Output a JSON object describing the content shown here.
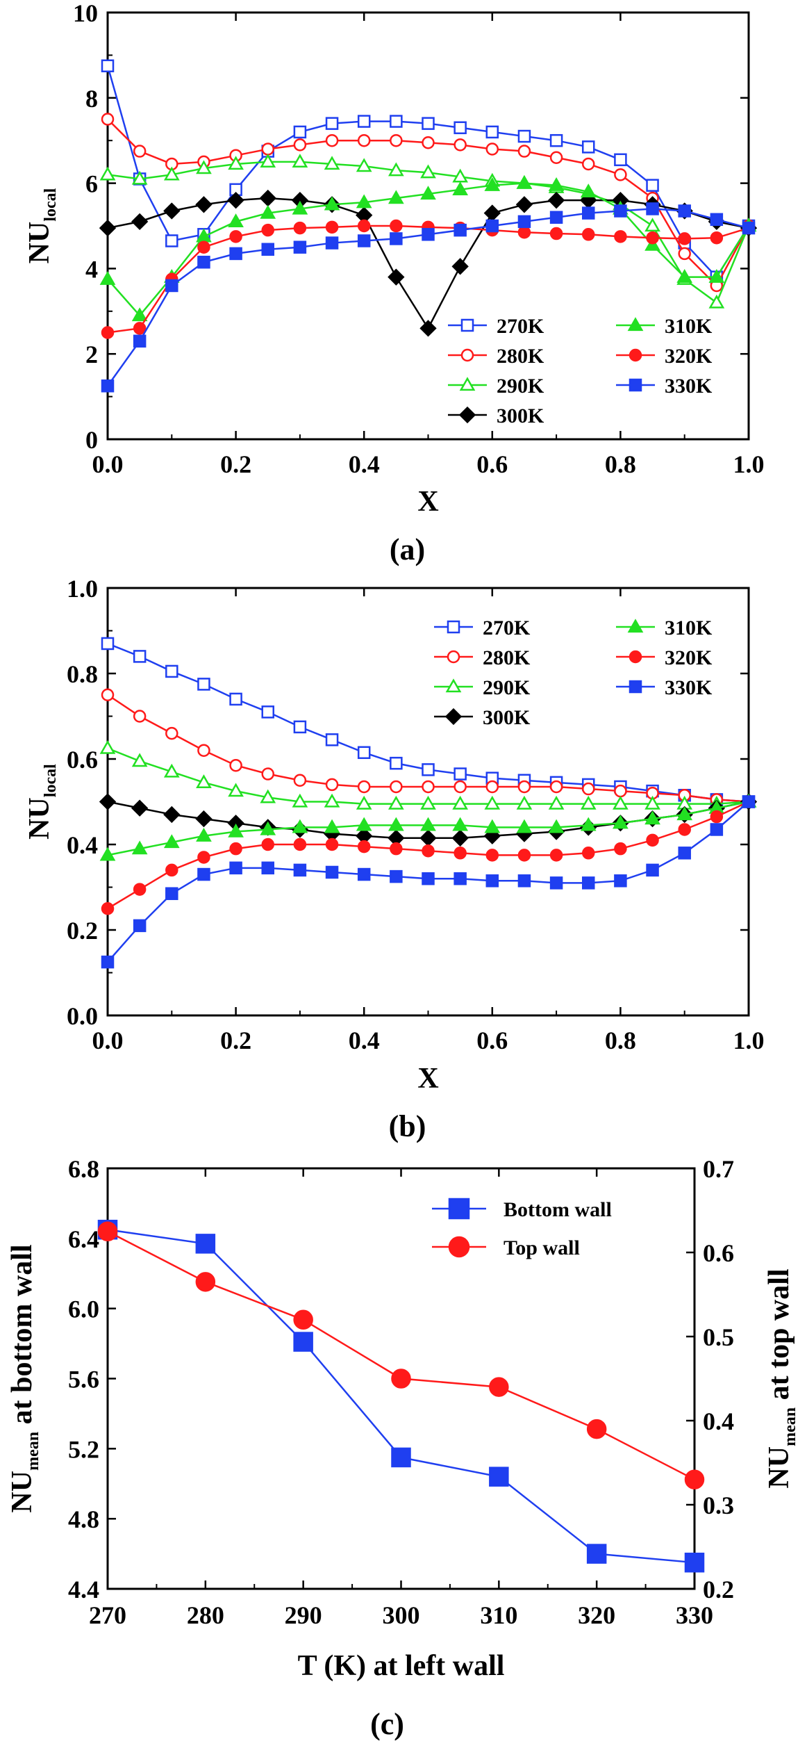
{
  "colors": {
    "c270": "#1f3ff0",
    "c280": "#ff1a1a",
    "c290": "#22e022",
    "c300": "#000000",
    "c310": "#22e022",
    "c320": "#ff1a1a",
    "c330": "#1f3ff0"
  },
  "chart_data": [
    {
      "type": "line",
      "panel_label": "(a)",
      "xlabel": "X",
      "ylabel_main": "NU",
      "ylabel_sub": "local",
      "xlim": [
        0,
        1
      ],
      "ylim": [
        0,
        10
      ],
      "x_ticks": [
        0.0,
        0.2,
        0.4,
        0.6,
        0.8,
        1.0
      ],
      "x_tick_labels": [
        "0.0",
        "0.2",
        "0.4",
        "0.6",
        "0.8",
        "1.0"
      ],
      "y_ticks": [
        0,
        2,
        4,
        6,
        8,
        10
      ],
      "y_tick_labels": [
        "0",
        "2",
        "4",
        "6",
        "8",
        "10"
      ],
      "legend_position": "bottom-right",
      "x": [
        0,
        0.05,
        0.1,
        0.15,
        0.2,
        0.25,
        0.3,
        0.35,
        0.4,
        0.45,
        0.5,
        0.55,
        0.6,
        0.65,
        0.7,
        0.75,
        0.8,
        0.85,
        0.9,
        0.95,
        1.0
      ],
      "series": [
        {
          "name": "270K",
          "color": "#1f3ff0",
          "marker": "square-open",
          "values": [
            8.75,
            6.1,
            4.65,
            4.8,
            5.85,
            6.75,
            7.2,
            7.4,
            7.45,
            7.45,
            7.4,
            7.3,
            7.2,
            7.1,
            7.0,
            6.85,
            6.55,
            5.95,
            4.6,
            3.8,
            5.0
          ]
        },
        {
          "name": "280K",
          "color": "#ff1a1a",
          "marker": "circle-open",
          "values": [
            7.5,
            6.75,
            6.45,
            6.5,
            6.65,
            6.8,
            6.9,
            7.0,
            7.0,
            7.0,
            6.95,
            6.9,
            6.8,
            6.75,
            6.6,
            6.45,
            6.2,
            5.65,
            4.35,
            3.6,
            5.0
          ]
        },
        {
          "name": "290K",
          "color": "#22e022",
          "marker": "triangle-open",
          "values": [
            6.2,
            6.1,
            6.2,
            6.35,
            6.45,
            6.5,
            6.5,
            6.45,
            6.4,
            6.3,
            6.25,
            6.15,
            6.05,
            6.0,
            5.9,
            5.75,
            5.5,
            5.0,
            3.75,
            3.2,
            5.0
          ]
        },
        {
          "name": "300K",
          "color": "#000000",
          "marker": "diamond-filled",
          "values": [
            4.95,
            5.1,
            5.35,
            5.5,
            5.6,
            5.65,
            5.6,
            5.5,
            5.25,
            3.8,
            2.6,
            4.05,
            5.3,
            5.5,
            5.6,
            5.6,
            5.6,
            5.5,
            5.35,
            5.1,
            4.95
          ]
        },
        {
          "name": "310K",
          "color": "#22e022",
          "marker": "triangle-filled",
          "values": [
            3.75,
            2.9,
            3.8,
            4.75,
            5.1,
            5.3,
            5.4,
            5.5,
            5.55,
            5.65,
            5.75,
            5.85,
            5.95,
            6.0,
            5.95,
            5.8,
            5.4,
            4.55,
            3.8,
            3.8,
            5.0
          ]
        },
        {
          "name": "320K",
          "color": "#ff1a1a",
          "marker": "circle-filled",
          "values": [
            2.5,
            2.6,
            3.75,
            4.5,
            4.75,
            4.9,
            4.95,
            4.97,
            5.0,
            5.0,
            4.97,
            4.95,
            4.9,
            4.85,
            4.82,
            4.8,
            4.75,
            4.72,
            4.7,
            4.72,
            4.95
          ]
        },
        {
          "name": "330K",
          "color": "#1f3ff0",
          "marker": "square-filled",
          "values": [
            1.25,
            2.3,
            3.6,
            4.15,
            4.35,
            4.45,
            4.5,
            4.6,
            4.65,
            4.7,
            4.8,
            4.9,
            5.0,
            5.1,
            5.2,
            5.3,
            5.35,
            5.4,
            5.35,
            5.15,
            4.95
          ]
        }
      ]
    },
    {
      "type": "line",
      "panel_label": "(b)",
      "xlabel": "X",
      "ylabel_main": "NU",
      "ylabel_sub": "local",
      "xlim": [
        0,
        1
      ],
      "ylim": [
        0,
        1
      ],
      "x_ticks": [
        0.0,
        0.2,
        0.4,
        0.6,
        0.8,
        1.0
      ],
      "x_tick_labels": [
        "0.0",
        "0.2",
        "0.4",
        "0.6",
        "0.8",
        "1.0"
      ],
      "y_ticks": [
        0,
        0.2,
        0.4,
        0.6,
        0.8,
        1.0
      ],
      "y_tick_labels": [
        "0.0",
        "0.2",
        "0.4",
        "0.6",
        "0.8",
        "1.0"
      ],
      "legend_position": "top-right",
      "x": [
        0,
        0.05,
        0.1,
        0.15,
        0.2,
        0.25,
        0.3,
        0.35,
        0.4,
        0.45,
        0.5,
        0.55,
        0.6,
        0.65,
        0.7,
        0.75,
        0.8,
        0.85,
        0.9,
        0.95,
        1.0
      ],
      "series": [
        {
          "name": "270K",
          "color": "#1f3ff0",
          "marker": "square-open",
          "values": [
            0.87,
            0.84,
            0.805,
            0.775,
            0.74,
            0.71,
            0.675,
            0.645,
            0.615,
            0.59,
            0.575,
            0.565,
            0.555,
            0.55,
            0.545,
            0.54,
            0.535,
            0.525,
            0.515,
            0.505,
            0.5
          ]
        },
        {
          "name": "280K",
          "color": "#ff1a1a",
          "marker": "circle-open",
          "values": [
            0.75,
            0.7,
            0.66,
            0.62,
            0.585,
            0.565,
            0.55,
            0.54,
            0.535,
            0.535,
            0.535,
            0.535,
            0.535,
            0.535,
            0.535,
            0.53,
            0.525,
            0.52,
            0.515,
            0.505,
            0.5
          ]
        },
        {
          "name": "290K",
          "color": "#22e022",
          "marker": "triangle-open",
          "values": [
            0.625,
            0.595,
            0.57,
            0.545,
            0.525,
            0.51,
            0.5,
            0.5,
            0.495,
            0.495,
            0.495,
            0.495,
            0.495,
            0.495,
            0.495,
            0.495,
            0.495,
            0.495,
            0.495,
            0.495,
            0.5
          ]
        },
        {
          "name": "300K",
          "color": "#000000",
          "marker": "diamond-filled",
          "values": [
            0.5,
            0.485,
            0.47,
            0.46,
            0.45,
            0.44,
            0.435,
            0.425,
            0.42,
            0.415,
            0.415,
            0.415,
            0.42,
            0.425,
            0.43,
            0.44,
            0.45,
            0.46,
            0.47,
            0.485,
            0.5
          ]
        },
        {
          "name": "310K",
          "color": "#22e022",
          "marker": "triangle-filled",
          "values": [
            0.375,
            0.39,
            0.405,
            0.42,
            0.43,
            0.435,
            0.44,
            0.44,
            0.445,
            0.445,
            0.445,
            0.445,
            0.44,
            0.44,
            0.44,
            0.445,
            0.45,
            0.46,
            0.47,
            0.485,
            0.5
          ]
        },
        {
          "name": "320K",
          "color": "#ff1a1a",
          "marker": "circle-filled",
          "values": [
            0.25,
            0.295,
            0.34,
            0.37,
            0.39,
            0.4,
            0.4,
            0.4,
            0.395,
            0.39,
            0.385,
            0.38,
            0.375,
            0.375,
            0.375,
            0.38,
            0.39,
            0.41,
            0.435,
            0.465,
            0.5
          ]
        },
        {
          "name": "330K",
          "color": "#1f3ff0",
          "marker": "square-filled",
          "values": [
            0.125,
            0.21,
            0.285,
            0.33,
            0.345,
            0.345,
            0.34,
            0.335,
            0.33,
            0.325,
            0.32,
            0.32,
            0.315,
            0.315,
            0.31,
            0.31,
            0.315,
            0.34,
            0.38,
            0.435,
            0.5
          ]
        }
      ]
    },
    {
      "type": "line",
      "panel_label": "(c)",
      "xlabel": "T (K) at left wall",
      "ylabel_left_main": "NU",
      "ylabel_left_sub": "mean",
      "ylabel_left_rest": " at bottom wall",
      "ylabel_right_main": "NU",
      "ylabel_right_sub": "mean",
      "ylabel_right_rest": " at top wall",
      "xlim": [
        270,
        330
      ],
      "ylim_left": [
        4.4,
        6.8
      ],
      "ylim_right": [
        0.2,
        0.7
      ],
      "x_ticks": [
        270,
        280,
        290,
        300,
        310,
        320,
        330
      ],
      "x_tick_labels": [
        "270",
        "280",
        "290",
        "300",
        "310",
        "320",
        "330"
      ],
      "y_left_ticks": [
        4.4,
        4.8,
        5.2,
        5.6,
        6.0,
        6.4,
        6.8
      ],
      "y_left_tick_labels": [
        "4.4",
        "4.8",
        "5.2",
        "5.6",
        "6.0",
        "6.4",
        "6.8"
      ],
      "y_right_ticks": [
        0.2,
        0.3,
        0.4,
        0.5,
        0.6,
        0.7
      ],
      "y_right_tick_labels": [
        "0.2",
        "0.3",
        "0.4",
        "0.5",
        "0.6",
        "0.7"
      ],
      "legend_position": "top-right",
      "x": [
        270,
        280,
        290,
        300,
        310,
        320,
        330
      ],
      "series": [
        {
          "name": "Bottom wall",
          "axis": "left",
          "color": "#1f3ff0",
          "marker": "square-filled",
          "values": [
            6.45,
            6.37,
            5.81,
            5.15,
            5.04,
            4.6,
            4.55
          ]
        },
        {
          "name": "Top wall",
          "axis": "right",
          "color": "#ff1a1a",
          "marker": "circle-filled",
          "values": [
            0.625,
            0.565,
            0.52,
            0.45,
            0.44,
            0.39,
            0.33
          ]
        }
      ]
    }
  ]
}
